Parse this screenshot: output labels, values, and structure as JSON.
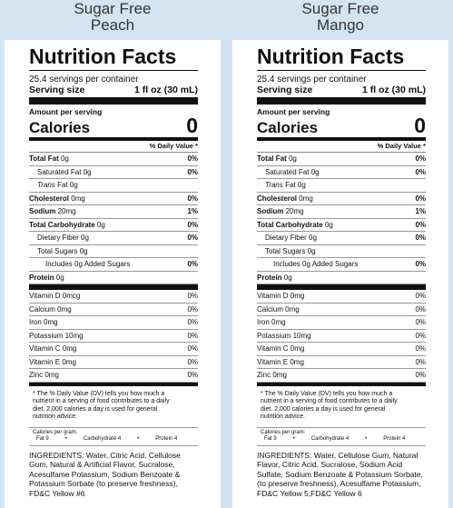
{
  "labels": [
    {
      "title": [
        "Sugar Free",
        "Peach"
      ],
      "heading": "Nutrition Facts",
      "servings": "25.4 servings per container",
      "serving_size_label": "Serving size",
      "serving_size": "1 fl oz (30 mL)",
      "amount_per_serving": "Amount per serving",
      "calories_label": "Calories",
      "calories": "0",
      "dv_header": "% Daily Value *",
      "rows": [
        {
          "name": "Total Fat",
          "amount": "0g",
          "dv": "0%",
          "bold": true
        },
        {
          "name": "Saturated Fat",
          "amount": "0g",
          "dv": "0%",
          "indent": 1
        },
        {
          "prefix": "Trans",
          "name": "Fat",
          "amount": "0g",
          "indent": 1
        },
        {
          "name": "Cholesterol",
          "amount": "0mg",
          "dv": "0%",
          "bold": true
        },
        {
          "name": "Sodium",
          "amount": "20mg",
          "dv": "1%",
          "bold": true
        },
        {
          "name": "Total Carbohydrate",
          "amount": "0g",
          "dv": "0%",
          "bold": true
        },
        {
          "name": "Dietary Fiber",
          "amount": "0g",
          "dv": "0%",
          "indent": 1
        },
        {
          "name": "Total Sugars",
          "amount": "0g",
          "indent": 1
        },
        {
          "name": "Includes 0g Added Sugars",
          "dv": "0%",
          "indent": 2
        },
        {
          "name": "Protein",
          "amount": "0g",
          "bold": true
        }
      ],
      "vitamins": [
        {
          "name": "Vitamin D",
          "amount": "0mcg",
          "dv": "0%"
        },
        {
          "name": "Calcium",
          "amount": "0mg",
          "dv": "0%"
        },
        {
          "name": "Iron",
          "amount": "0mg",
          "dv": "0%"
        },
        {
          "name": "Potassium",
          "amount": "10mg",
          "dv": "0%"
        },
        {
          "name": "Vitamin C",
          "amount": "0mg",
          "dv": "0%"
        },
        {
          "name": "Vitamin E",
          "amount": "0mg",
          "dv": "0%"
        },
        {
          "name": "Zinc",
          "amount": "0mg",
          "dv": "0%"
        }
      ],
      "footnote": "* The % Daily Value (DV) tells you how much a nutrient in a serving of food contributes to a daily diet. 2,000 calories a day is used for general nutrition advice.",
      "cal_per_gram": "Calories per gram:",
      "cal_items": [
        "Fat 9",
        "Carbohydrate 4",
        "Protein 4"
      ],
      "ingredients": "INGREDIENTS: Water, Citric Acid, Cellulose Gum, Natural & Artificial Flavor, Sucralose, Acesulfame Potassium,  Sodium Benzoate & Potassium Sorbate (to preserve freshness), FD&C Yellow #6"
    },
    {
      "title": [
        "Sugar Free",
        "Mango"
      ],
      "heading": "Nutrition Facts",
      "servings": "25.4 servings per container",
      "serving_size_label": "Serving size",
      "serving_size": "1 fl oz (30 mL)",
      "amount_per_serving": "Amount per serving",
      "calories_label": "Calories",
      "calories": "0",
      "dv_header": "% Daily Value *",
      "rows": [
        {
          "name": "Total Fat",
          "amount": "0g",
          "dv": "0%",
          "bold": true
        },
        {
          "name": "Saturated Fat",
          "amount": "0g",
          "dv": "0%",
          "indent": 1
        },
        {
          "prefix": "Trans",
          "name": "Fat",
          "amount": "0g",
          "indent": 1
        },
        {
          "name": "Cholesterol",
          "amount": "0mg",
          "dv": "0%",
          "bold": true
        },
        {
          "name": "Sodium",
          "amount": "20mg",
          "dv": "1%",
          "bold": true
        },
        {
          "name": "Total Carbohydrate",
          "amount": "0g",
          "dv": "0%",
          "bold": true
        },
        {
          "name": "Dietary Fiber",
          "amount": "0g",
          "dv": "0%",
          "indent": 1
        },
        {
          "name": "Total Sugars",
          "amount": "0g",
          "indent": 1
        },
        {
          "name": "Includes 0g Added Sugars",
          "dv": "0%",
          "indent": 2
        },
        {
          "name": "Protein",
          "amount": "0g",
          "bold": true
        }
      ],
      "vitamins": [
        {
          "name": "Vitamin D",
          "amount": "0mg",
          "dv": "0%"
        },
        {
          "name": "Calcium",
          "amount": "0mg",
          "dv": "0%"
        },
        {
          "name": "Iron",
          "amount": "0mg",
          "dv": "0%"
        },
        {
          "name": "Potassium",
          "amount": "10mg",
          "dv": "0%"
        },
        {
          "name": "Vitamin C",
          "amount": "0mg",
          "dv": "0%"
        },
        {
          "name": "Vitamin E",
          "amount": "0mg",
          "dv": "0%"
        },
        {
          "name": "Zinc",
          "amount": "0mg",
          "dv": "0%"
        }
      ],
      "footnote": "* The % Daily Value (DV) tells you how much a nutrient in a serving of food contributes to a daily diet. 2,000 calories a day is used for general nutrition advice.",
      "cal_per_gram": "Calories per gram:",
      "cal_items": [
        "Fat 9",
        "Carbohydrate 4",
        "Protein 4"
      ],
      "ingredients": "INGREDIENTS: Water, Cellulose Gum, Natural Flavor, Citric Acid, Sucralose, Sodium Acid Sulfate, Sodium Benzoate & Potassium Sorbate, (to preserve freshness), Acesulfame Potassium, FD&C Yellow 5,FD&C Yellow 6"
    }
  ]
}
